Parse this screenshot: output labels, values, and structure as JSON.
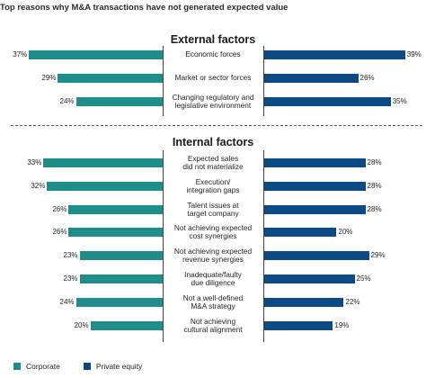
{
  "title": "Top reasons why M&A transactions have not generated expected value",
  "colors": {
    "corporate": "#1f8e8a",
    "private_equity": "#0c4a86"
  },
  "legend": {
    "corporate": "Corporate",
    "private_equity": "Private equity"
  },
  "chart_data": {
    "type": "bar",
    "orientation": "horizontal-diverging",
    "title": "Top reasons why M&A transactions have not generated expected value",
    "legend": [
      "Corporate",
      "Private equity"
    ],
    "legend_position": "bottom-left",
    "value_format": "percent",
    "groups": [
      {
        "name": "External factors",
        "categories": [
          "Economic forces",
          "Market or sector forces",
          "Changing regulatory and legislative environment"
        ],
        "series": [
          {
            "name": "Corporate",
            "values": [
              37,
              29,
              24
            ]
          },
          {
            "name": "Private equity",
            "values": [
              39,
              26,
              35
            ]
          }
        ]
      },
      {
        "name": "Internal factors",
        "categories": [
          "Expected sales did not materialize",
          "Execution/ integration gaps",
          "Talent issues at target company",
          "Not achieving expected cost synergies",
          "Not achieving expected revenue synergies",
          "Inadequate/faulty due diligence",
          "Not a well-defined M&A strategy",
          "Not achieving cultural alignment"
        ],
        "series": [
          {
            "name": "Corporate",
            "values": [
              33,
              32,
              26,
              26,
              23,
              23,
              24,
              20
            ]
          },
          {
            "name": "Private equity",
            "values": [
              28,
              28,
              28,
              20,
              29,
              25,
              22,
              19
            ]
          }
        ]
      }
    ]
  },
  "category_lines": [
    [
      "Economic forces"
    ],
    [
      "Market or sector forces"
    ],
    [
      "Changing regulatory and",
      "legislative environment"
    ],
    [
      "Expected sales",
      "did not materialize"
    ],
    [
      "Execution/",
      "integration gaps"
    ],
    [
      "Talent issues at",
      "target company"
    ],
    [
      "Not achieving expected",
      "cost synergies"
    ],
    [
      "Not achieving expected",
      "revenue synergies"
    ],
    [
      "Inadequate/faulty",
      "due diligence"
    ],
    [
      "Not a well-defined",
      "M&A strategy"
    ],
    [
      "Not achieving",
      "cultural alignment"
    ]
  ]
}
